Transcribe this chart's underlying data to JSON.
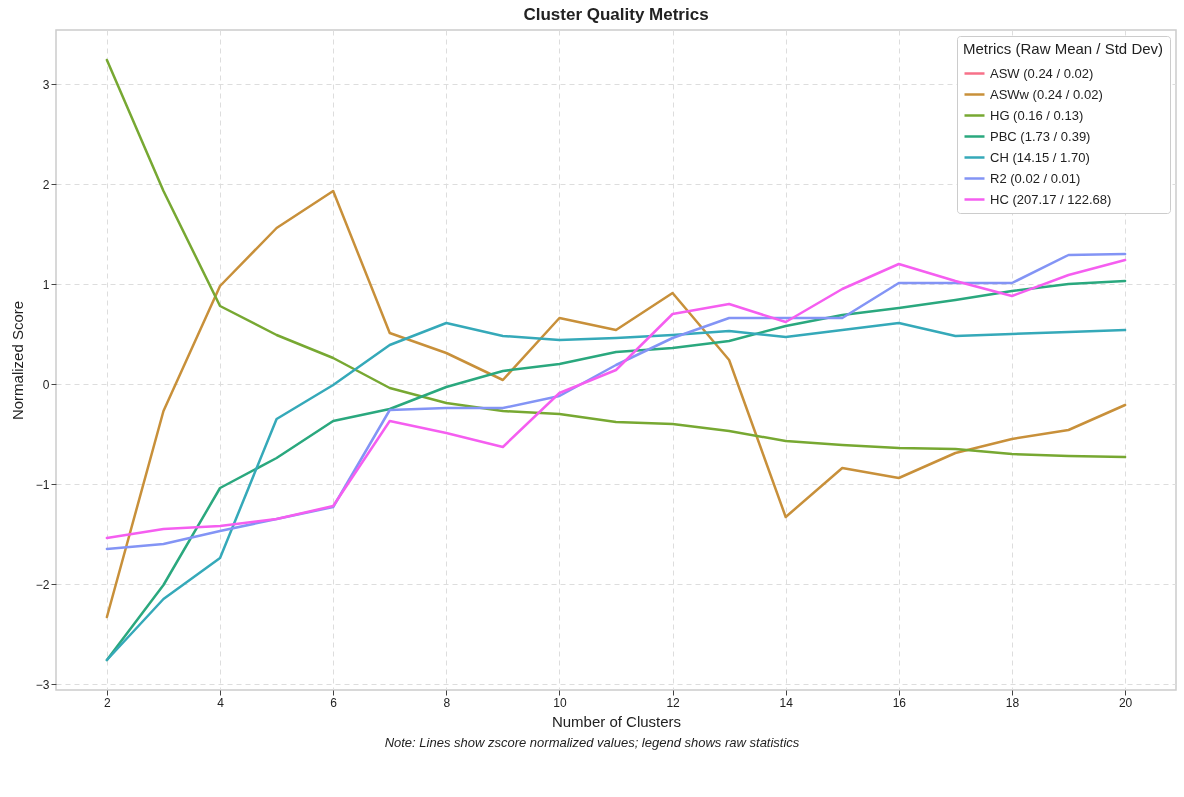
{
  "chart_data": {
    "type": "line",
    "title": "Cluster Quality Metrics",
    "xlabel": "Number of Clusters",
    "ylabel": "Normalized Score",
    "legend_title": "Metrics (Raw Mean / Std Dev)",
    "annotations": [
      "Note: Lines show zscore normalized values; legend shows raw statistics"
    ],
    "x": [
      2,
      3,
      4,
      5,
      6,
      7,
      8,
      9,
      10,
      11,
      12,
      13,
      14,
      15,
      16,
      17,
      18,
      19,
      20
    ],
    "xlim": [
      1.1,
      20.9
    ],
    "xticks": [
      2,
      4,
      6,
      8,
      10,
      12,
      14,
      16,
      18,
      20
    ],
    "ylim": [
      -3.06,
      3.54
    ],
    "yticks": [
      -3,
      -2,
      -1,
      0,
      1,
      2,
      3
    ],
    "grid": true,
    "legend": "top right",
    "line_style": "solid",
    "marker": "none",
    "series": [
      {
        "name": "ASW (0.24 / 0.02)",
        "color": "#f77189",
        "values": [
          null,
          null,
          null,
          null,
          null,
          null,
          null,
          null,
          null,
          null,
          null,
          null,
          null,
          null,
          null,
          null,
          null,
          null,
          null
        ]
      },
      {
        "name": "ASWw (0.24 / 0.02)",
        "color": "#c8903a",
        "values": [
          -2.33,
          -0.27,
          0.98,
          1.56,
          1.93,
          0.51,
          0.31,
          0.04,
          0.66,
          0.54,
          0.91,
          0.24,
          -1.33,
          -0.84,
          -0.94,
          -0.69,
          -0.55,
          -0.46,
          -0.21
        ]
      },
      {
        "name": "HG (0.16 / 0.13)",
        "color": "#77a832",
        "values": [
          3.24,
          1.93,
          0.78,
          0.49,
          0.26,
          -0.04,
          -0.19,
          -0.27,
          -0.3,
          -0.38,
          -0.4,
          -0.47,
          -0.57,
          -0.61,
          -0.64,
          -0.65,
          -0.7,
          -0.72,
          -0.73
        ]
      },
      {
        "name": "PBC (1.73 / 0.39)",
        "color": "#2aa87e",
        "values": [
          -2.76,
          -2.01,
          -1.04,
          -0.74,
          -0.37,
          -0.25,
          -0.03,
          0.13,
          0.2,
          0.32,
          0.36,
          0.43,
          0.58,
          0.69,
          0.76,
          0.84,
          0.93,
          1.0,
          1.03
        ]
      },
      {
        "name": "CH (14.15 / 1.70)",
        "color": "#35a9b9",
        "values": [
          -2.76,
          -2.15,
          -1.74,
          -0.35,
          -0.01,
          0.39,
          0.61,
          0.48,
          0.44,
          0.46,
          0.49,
          0.53,
          0.47,
          0.54,
          0.61,
          0.48,
          0.5,
          0.52,
          0.54
        ]
      },
      {
        "name": "R2 (0.02 / 0.01)",
        "color": "#8394f5",
        "values": [
          -1.65,
          -1.6,
          -1.47,
          -1.35,
          -1.23,
          -0.26,
          -0.24,
          -0.24,
          -0.12,
          0.19,
          0.46,
          0.66,
          0.66,
          0.66,
          1.01,
          1.01,
          1.01,
          1.29,
          1.3
        ]
      },
      {
        "name": "HC (207.17 / 122.68)",
        "color": "#f55ef0",
        "values": [
          -1.54,
          -1.45,
          -1.42,
          -1.35,
          -1.22,
          -0.37,
          -0.49,
          -0.63,
          -0.09,
          0.14,
          0.7,
          0.8,
          0.62,
          0.95,
          1.2,
          1.03,
          0.88,
          1.09,
          1.24
        ]
      }
    ]
  }
}
